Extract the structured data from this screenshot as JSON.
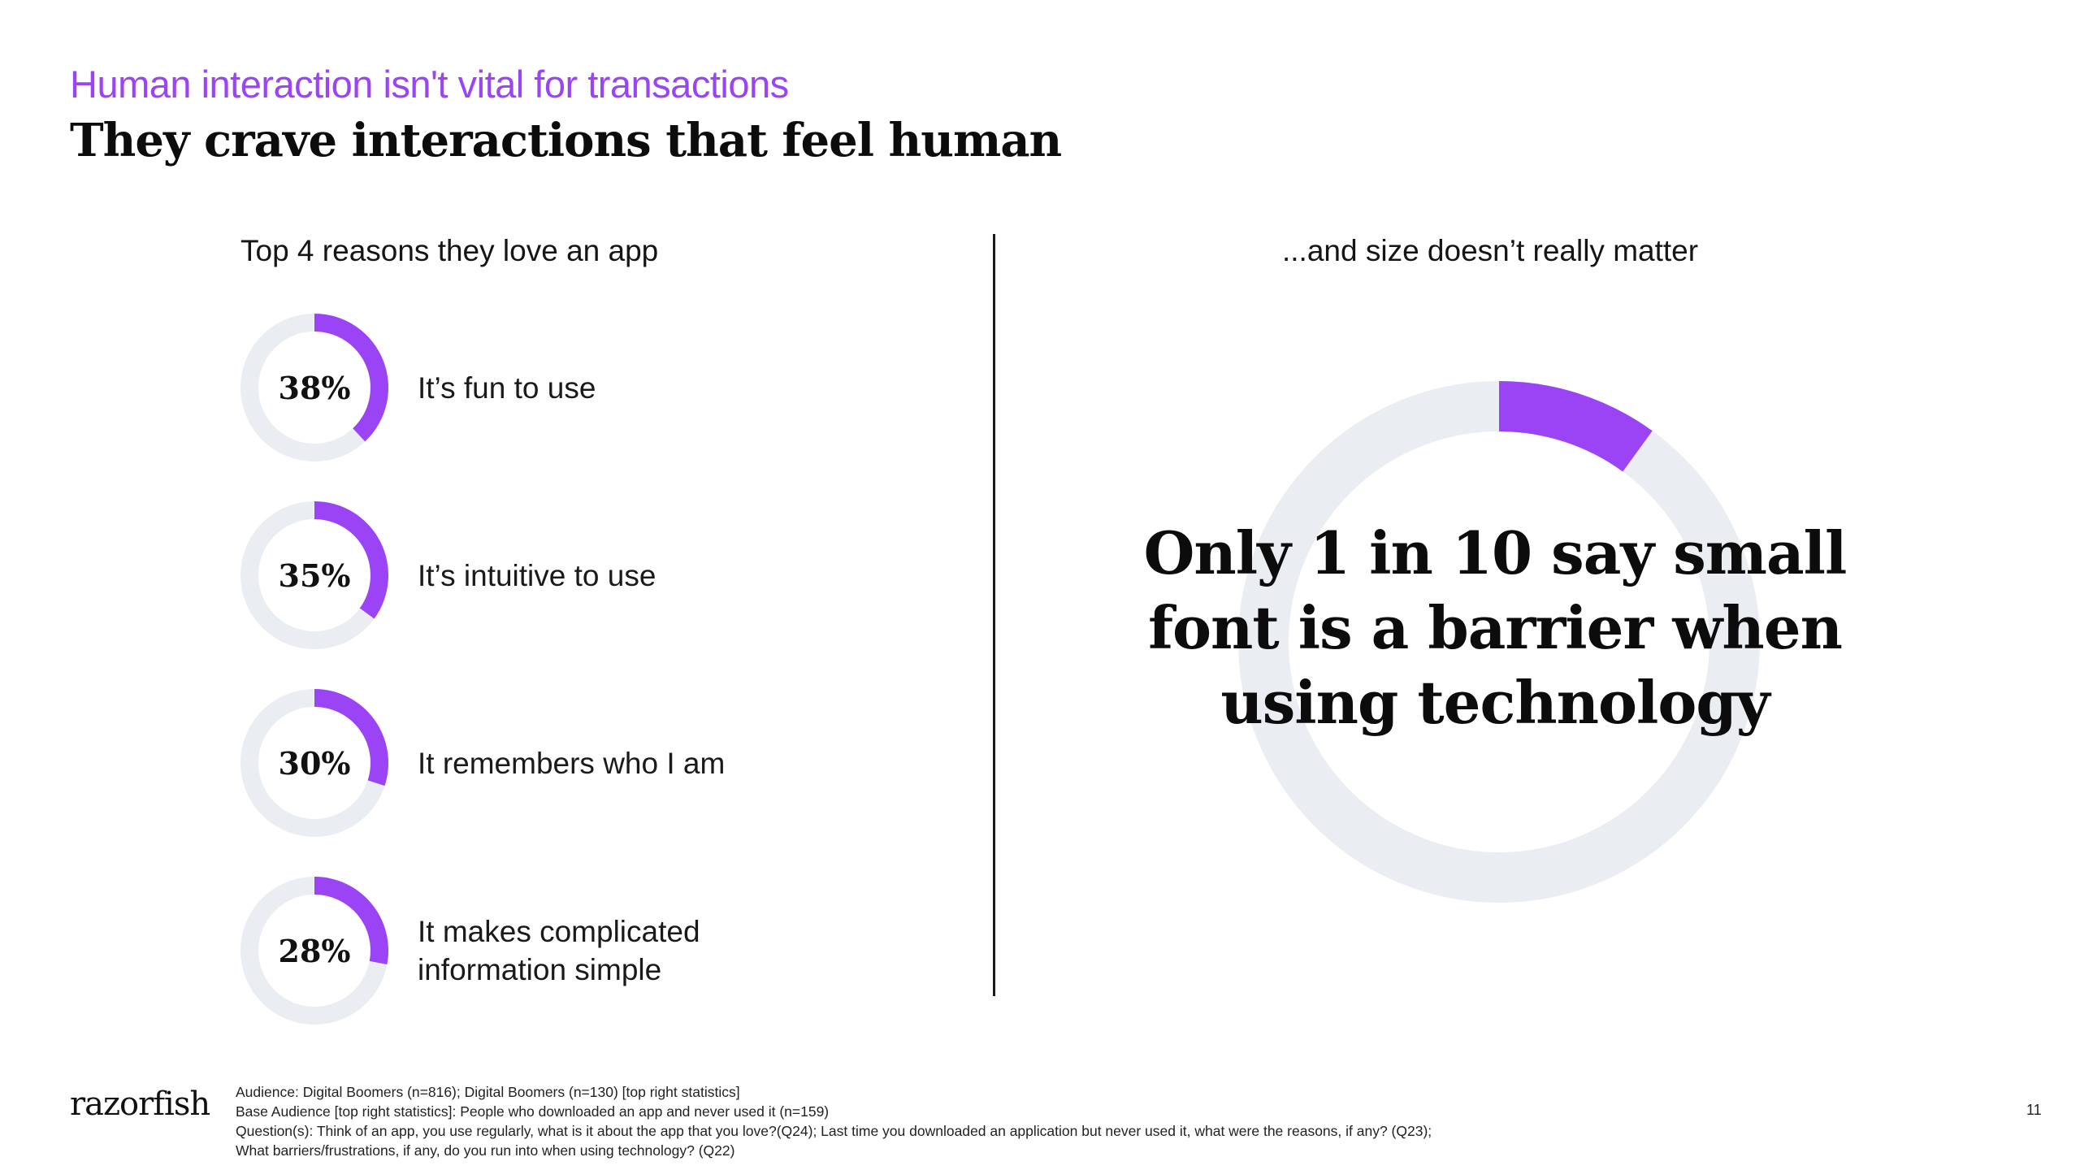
{
  "header": {
    "eyebrow": "Human interaction isn't vital for transactions",
    "title": "They crave interactions that feel human"
  },
  "left_panel": {
    "heading": "Top 4 reasons they love an app"
  },
  "right_panel": {
    "heading": "...and size doesn’t really matter",
    "statement": "Only 1 in 10 say small font is a barrier when using technology"
  },
  "chart_data": [
    {
      "type": "pie",
      "variant": "donut",
      "title": "Top 4 reasons they love an app",
      "unit": "%",
      "categories": [
        "It’s fun to use",
        "It’s intuitive to use",
        "It remembers who I am",
        "It makes complicated information simple"
      ],
      "values": [
        38,
        35,
        30,
        28
      ],
      "labels": [
        "38%",
        "35%",
        "30%",
        "28%"
      ],
      "max": 100,
      "colors": {
        "fill": "#9b44f5",
        "track": "#eaedf1"
      }
    },
    {
      "type": "pie",
      "variant": "donut",
      "title": "...and size doesn’t really matter",
      "unit": "fraction",
      "categories": [
        "Say small font is a barrier"
      ],
      "values": [
        0.1
      ],
      "max": 1,
      "colors": {
        "fill": "#9b44f5",
        "track": "#eaedf1"
      }
    }
  ],
  "footer": {
    "logo": "razorfish",
    "notes": [
      "Audience: Digital Boomers (n=816); Digital Boomers (n=130) [top right statistics]",
      "Base Audience [top right statistics]: People who downloaded an app and never used it (n=159)",
      "Question(s): Think of an app, you use regularly, what is it about the app that you love?(Q24); Last time you downloaded an application but never used it, what were the reasons, if any? (Q23);",
      " What barriers/frustrations, if any, do you run into when using technology? (Q22)"
    ],
    "page_number": "11"
  }
}
